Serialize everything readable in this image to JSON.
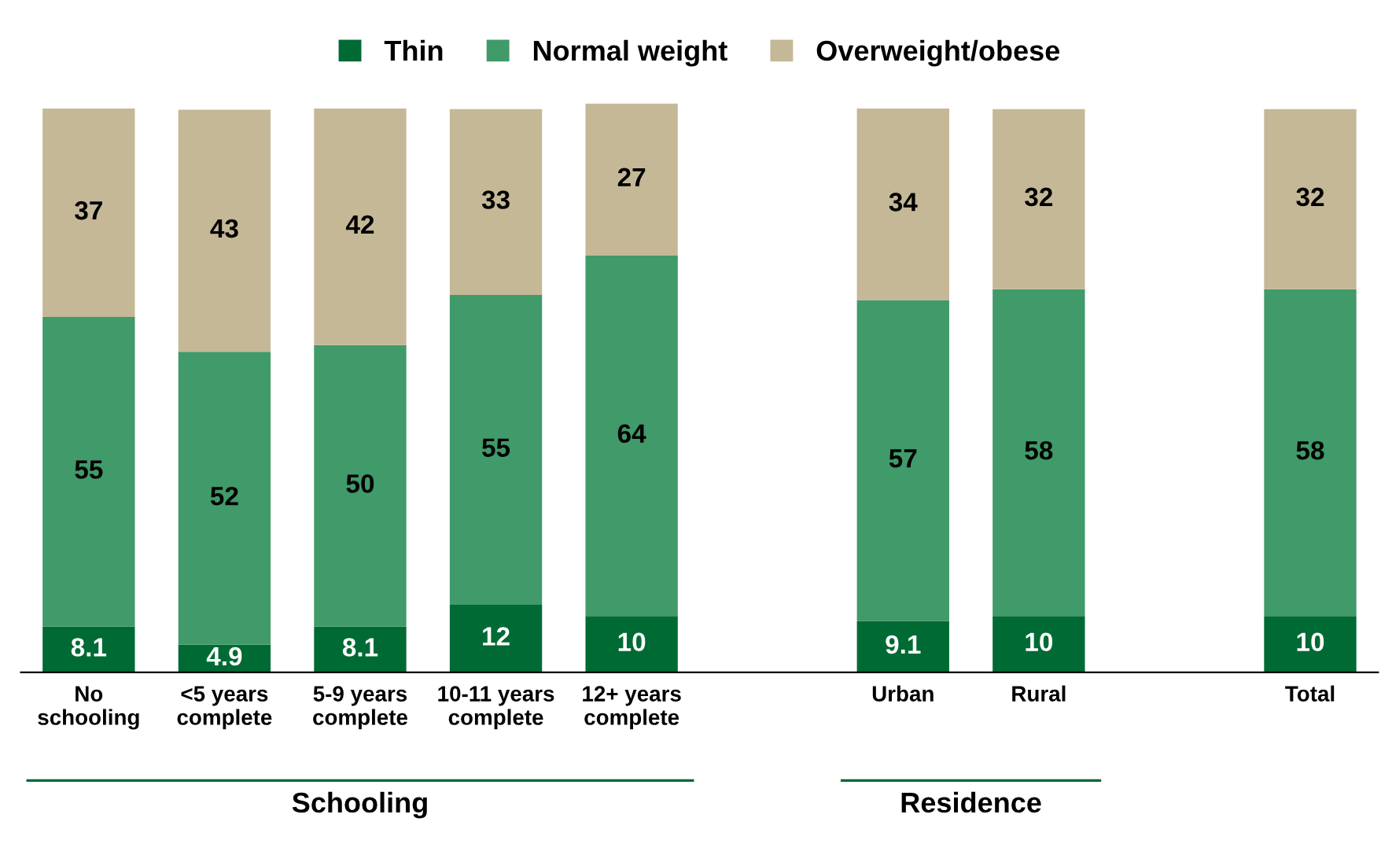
{
  "chart_data": {
    "type": "bar",
    "stacked": true,
    "data_labels": true,
    "legend": "top",
    "grid": false,
    "categories": [
      "No\nschooling",
      "<5 years\ncomplete",
      "5-9 years\ncomplete",
      "10-11 years\ncomplete",
      "12+ years\ncomplete",
      null,
      "Urban",
      "Rural",
      null,
      "Total"
    ],
    "series": [
      {
        "name": "Thin",
        "color": "#006a35",
        "values": [
          8.1,
          4.9,
          8.1,
          12,
          10,
          null,
          9.1,
          10,
          null,
          10
        ]
      },
      {
        "name": "Normal weight",
        "color": "#409a69",
        "values": [
          55,
          52,
          50,
          55,
          64,
          null,
          57,
          58,
          null,
          58
        ]
      },
      {
        "name": "Overweight/obese",
        "color": "#c5b897",
        "values": [
          37,
          43,
          42,
          33,
          27,
          null,
          34,
          32,
          null,
          32
        ]
      }
    ],
    "annotations": [
      "Schooling",
      "Residence"
    ]
  }
}
